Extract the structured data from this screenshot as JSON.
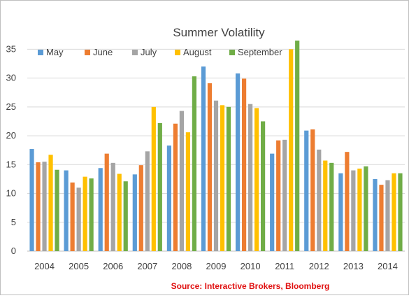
{
  "chart_data": {
    "type": "bar",
    "title": "Summer Volatility",
    "categories": [
      "2004",
      "2005",
      "2006",
      "2007",
      "2008",
      "2009",
      "2010",
      "2011",
      "2012",
      "2013",
      "2014"
    ],
    "series": [
      {
        "name": "May",
        "color": "#5B9BD5",
        "values": [
          17.7,
          14.0,
          14.4,
          13.3,
          18.3,
          32.0,
          30.8,
          16.9,
          20.9,
          13.5,
          12.5
        ]
      },
      {
        "name": "June",
        "color": "#ED7D31",
        "values": [
          15.4,
          11.9,
          16.9,
          14.9,
          22.1,
          29.1,
          29.9,
          19.2,
          21.1,
          17.2,
          11.5
        ]
      },
      {
        "name": "July",
        "color": "#A5A5A5",
        "values": [
          15.5,
          11.0,
          15.3,
          17.3,
          24.3,
          26.1,
          25.5,
          19.3,
          17.6,
          14.0,
          12.3
        ]
      },
      {
        "name": "August",
        "color": "#FFC000",
        "values": [
          16.7,
          12.9,
          13.4,
          25.0,
          20.6,
          25.3,
          24.8,
          35.0,
          15.7,
          14.3,
          13.5
        ]
      },
      {
        "name": "September",
        "color": "#70AD47",
        "values": [
          14.1,
          12.6,
          12.1,
          22.2,
          30.3,
          25.0,
          22.5,
          36.5,
          15.3,
          14.7,
          13.5
        ]
      }
    ],
    "y_ticks": [
      0,
      5,
      10,
      15,
      20,
      25,
      30,
      35
    ],
    "ylim": [
      0,
      36.5
    ],
    "grid": true,
    "legend_position": "top",
    "source": "Source: Interactive Brokers, Bloomberg"
  }
}
